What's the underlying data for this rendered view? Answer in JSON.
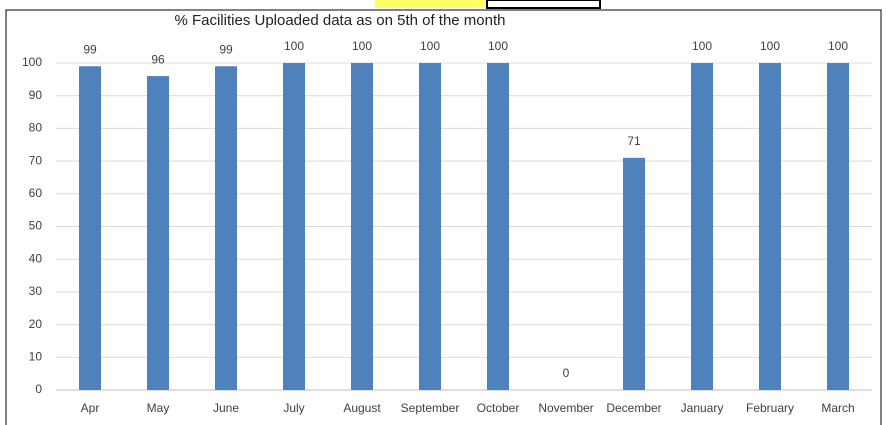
{
  "chart_data": {
    "type": "bar",
    "title": "% Facilities Uploaded data as on 5th of the month",
    "categories": [
      "Apr",
      "May",
      "June",
      "July",
      "August",
      "September",
      "October",
      "November",
      "December",
      "January",
      "February",
      "March"
    ],
    "values": [
      99,
      96,
      99,
      100,
      100,
      100,
      100,
      0,
      71,
      100,
      100,
      100
    ],
    "color": "#4f81bd",
    "ylim": [
      0,
      100
    ],
    "yticks": [
      0,
      10,
      20,
      30,
      40,
      50,
      60,
      70,
      80,
      90,
      100
    ],
    "grid": true
  }
}
